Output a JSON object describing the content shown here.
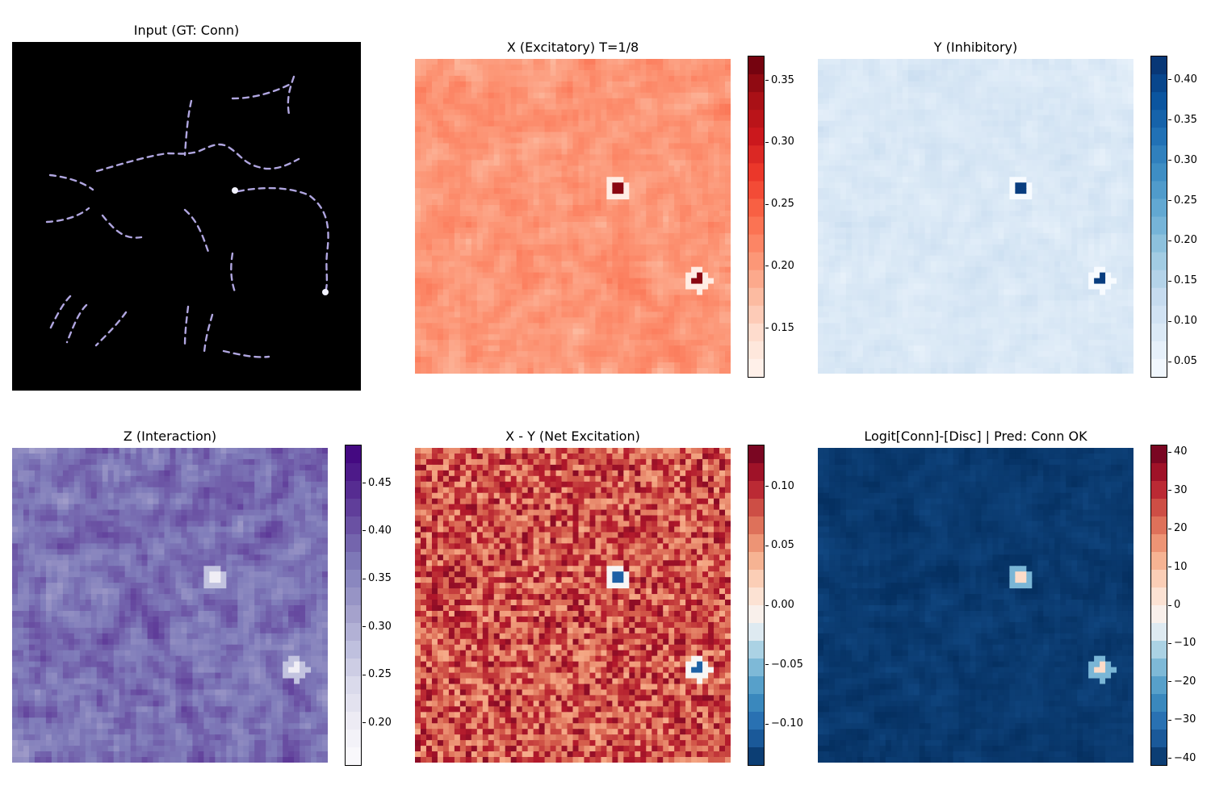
{
  "figure": {
    "panels": [
      {
        "id": "input",
        "title": "Input (GT: Conn)"
      },
      {
        "id": "x",
        "title": "X (Excitatory) T=1/8"
      },
      {
        "id": "y",
        "title": "Y (Inhibitory)"
      },
      {
        "id": "z",
        "title": "Z (Interaction)"
      },
      {
        "id": "xy",
        "title": "X - Y (Net Excitation)"
      },
      {
        "id": "logit",
        "title": "Logit[Conn]-[Disc] | Pred: Conn OK"
      }
    ]
  },
  "colorbars": {
    "x": {
      "colormap": "Reds",
      "range": [
        0.11,
        0.37
      ],
      "ticks": [
        "0.15",
        "0.20",
        "0.25",
        "0.30",
        "0.35"
      ],
      "values": [
        0.15,
        0.2,
        0.25,
        0.3,
        0.35
      ]
    },
    "y": {
      "colormap": "Blues",
      "range": [
        0.03,
        0.43
      ],
      "ticks": [
        "0.05",
        "0.10",
        "0.15",
        "0.20",
        "0.25",
        "0.30",
        "0.35",
        "0.40"
      ],
      "values": [
        0.05,
        0.1,
        0.15,
        0.2,
        0.25,
        0.3,
        0.35,
        0.4
      ]
    },
    "z": {
      "colormap": "Purples",
      "range": [
        0.155,
        0.49
      ],
      "ticks": [
        "0.20",
        "0.25",
        "0.30",
        "0.35",
        "0.40",
        "0.45"
      ],
      "values": [
        0.2,
        0.25,
        0.3,
        0.35,
        0.4,
        0.45
      ]
    },
    "xy": {
      "colormap": "RdBu_r",
      "range": [
        -0.135,
        0.135
      ],
      "ticks": [
        "0.10",
        "0.05",
        "0.00",
        "−0.05",
        "−0.10"
      ],
      "values": [
        0.1,
        0.05,
        0.0,
        -0.05,
        -0.1
      ]
    },
    "logit": {
      "colormap": "RdBu_r",
      "range": [
        -42,
        42
      ],
      "ticks": [
        "40",
        "30",
        "20",
        "10",
        "0",
        "−10",
        "−20",
        "−30",
        "−40"
      ],
      "values": [
        40,
        30,
        20,
        10,
        0,
        -10,
        -20,
        -30,
        -40
      ]
    }
  },
  "chart_data": [
    {
      "type": "heatmap",
      "title": "Input (GT: Conn)",
      "content": "binary contour image, dashed lavender curves on black background"
    },
    {
      "type": "heatmap",
      "title": "X (Excitatory) T=1/8",
      "colorbar_range": [
        0.11,
        0.37
      ],
      "hotspots": 2
    },
    {
      "type": "heatmap",
      "title": "Y (Inhibitory)",
      "colorbar_range": [
        0.03,
        0.43
      ],
      "hotspots": 2
    },
    {
      "type": "heatmap",
      "title": "Z (Interaction)",
      "colorbar_range": [
        0.155,
        0.49
      ],
      "hotspots": 2
    },
    {
      "type": "heatmap",
      "title": "X - Y (Net Excitation)",
      "colorbar_range": [
        -0.135,
        0.135
      ],
      "hotspots": 2
    },
    {
      "type": "heatmap",
      "title": "Logit[Conn]-[Disc] | Pred: Conn OK",
      "colorbar_range": [
        -42,
        42
      ],
      "hotspots": 2
    }
  ]
}
